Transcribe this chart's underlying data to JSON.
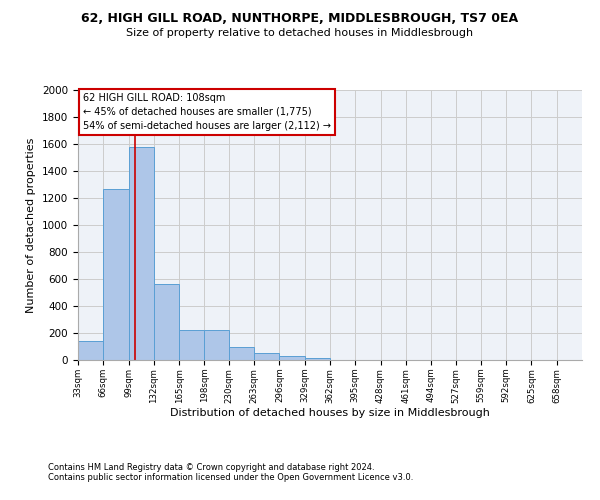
{
  "title_line1": "62, HIGH GILL ROAD, NUNTHORPE, MIDDLESBROUGH, TS7 0EA",
  "title_line2": "Size of property relative to detached houses in Middlesbrough",
  "xlabel": "Distribution of detached houses by size in Middlesbrough",
  "ylabel": "Number of detached properties",
  "footer_line1": "Contains HM Land Registry data © Crown copyright and database right 2024.",
  "footer_line2": "Contains public sector information licensed under the Open Government Licence v3.0.",
  "annotation_title": "62 HIGH GILL ROAD: 108sqm",
  "annotation_line1": "← 45% of detached houses are smaller (1,775)",
  "annotation_line2": "54% of semi-detached houses are larger (2,112) →",
  "bar_edges": [
    33,
    66,
    99,
    132,
    165,
    198,
    230,
    263,
    296,
    329,
    362,
    395,
    428,
    461,
    494,
    527,
    559,
    592,
    625,
    658,
    691
  ],
  "bar_heights": [
    140,
    1268,
    1575,
    565,
    220,
    220,
    95,
    50,
    28,
    18,
    0,
    0,
    0,
    0,
    0,
    0,
    0,
    0,
    0,
    0
  ],
  "bar_color": "#aec6e8",
  "bar_edge_color": "#5a9fd4",
  "grid_color": "#cccccc",
  "bg_color": "#eef2f8",
  "red_line_x": 108,
  "annotation_box_color": "#ffffff",
  "annotation_box_edge": "#cc0000",
  "ylim": [
    0,
    2000
  ],
  "yticks": [
    0,
    200,
    400,
    600,
    800,
    1000,
    1200,
    1400,
    1600,
    1800,
    2000
  ]
}
